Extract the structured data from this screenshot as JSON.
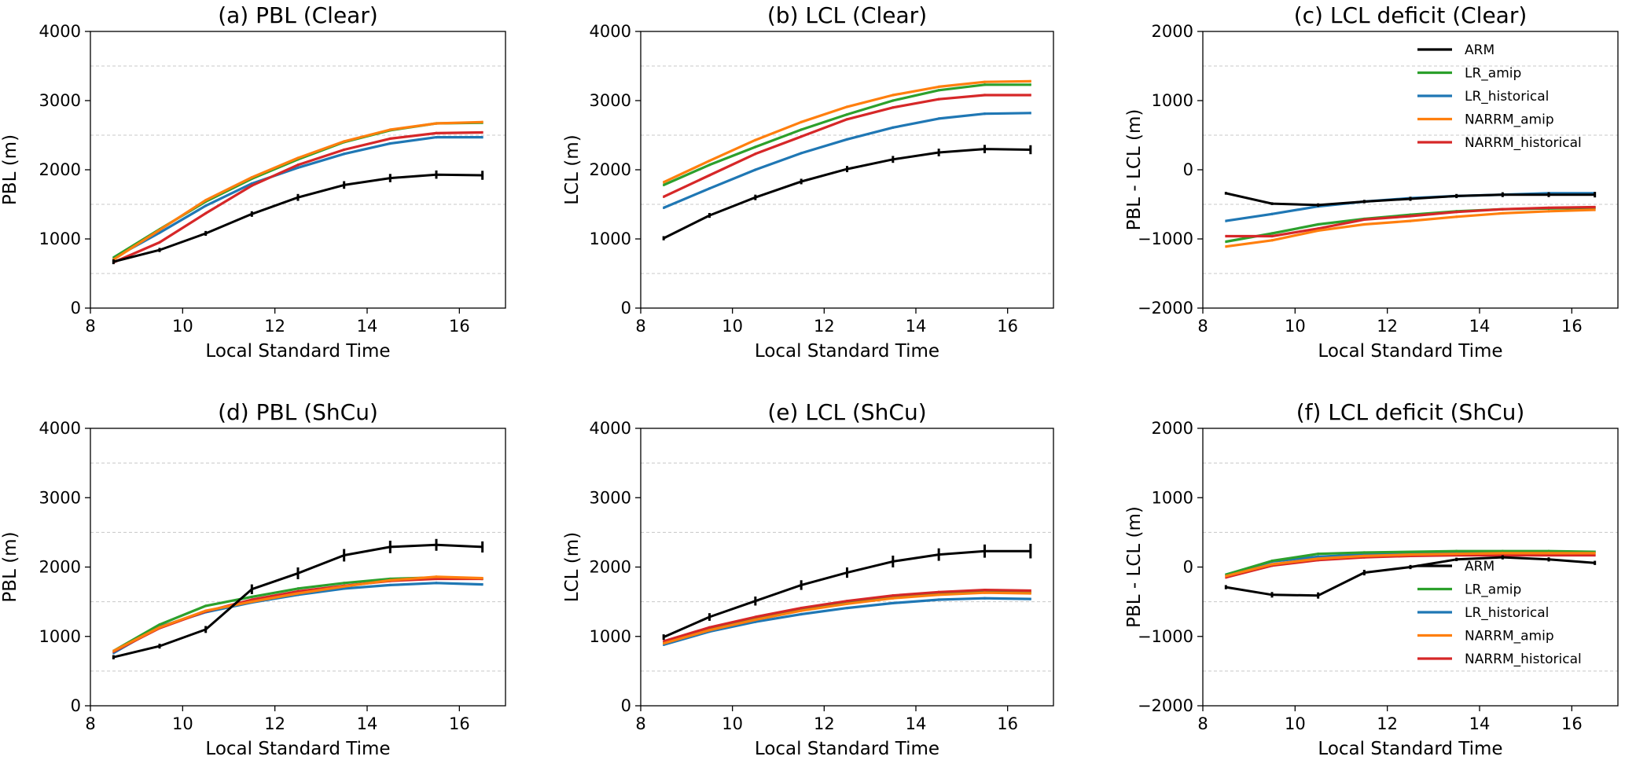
{
  "figure": {
    "series_colors": {
      "ARM": "#000000",
      "LR_amip": "#2ca02c",
      "LR_historical": "#1f77b4",
      "NARRM_amip": "#ff7f0e",
      "NARRM_historical": "#d62728"
    }
  },
  "chart_data": [
    {
      "id": "a",
      "type": "line",
      "title": "(a) PBL (Clear)",
      "xlabel": "Local Standard Time",
      "ylabel": "PBL (m)",
      "xlim": [
        8,
        17
      ],
      "ylim": [
        0,
        4000
      ],
      "xticks": [
        8,
        10,
        12,
        14,
        16
      ],
      "yticks": [
        0,
        1000,
        2000,
        3000,
        4000
      ],
      "grid": "horizontal dashed",
      "legend": null,
      "x": [
        8.5,
        9.5,
        10.5,
        11.5,
        12.5,
        13.5,
        14.5,
        15.5,
        16.5
      ],
      "series": [
        {
          "name": "LR_historical",
          "values": [
            720,
            1090,
            1480,
            1800,
            2030,
            2230,
            2380,
            2470,
            2470
          ]
        },
        {
          "name": "LR_amip",
          "values": [
            730,
            1140,
            1540,
            1870,
            2150,
            2400,
            2570,
            2670,
            2680
          ]
        },
        {
          "name": "NARRM_historical",
          "values": [
            660,
            950,
            1370,
            1770,
            2070,
            2290,
            2450,
            2530,
            2540
          ]
        },
        {
          "name": "NARRM_amip",
          "values": [
            700,
            1130,
            1560,
            1890,
            2170,
            2410,
            2580,
            2670,
            2690
          ]
        },
        {
          "name": "ARM",
          "values": [
            670,
            840,
            1080,
            1360,
            1600,
            1780,
            1880,
            1930,
            1920
          ],
          "errors": [
            35,
            30,
            35,
            40,
            50,
            55,
            60,
            60,
            65
          ]
        }
      ]
    },
    {
      "id": "b",
      "type": "line",
      "title": "(b) LCL (Clear)",
      "xlabel": "Local Standard Time",
      "ylabel": "LCL (m)",
      "xlim": [
        8,
        17
      ],
      "ylim": [
        0,
        4000
      ],
      "xticks": [
        8,
        10,
        12,
        14,
        16
      ],
      "yticks": [
        0,
        1000,
        2000,
        3000,
        4000
      ],
      "grid": "horizontal dashed",
      "legend": null,
      "x": [
        8.5,
        9.5,
        10.5,
        11.5,
        12.5,
        13.5,
        14.5,
        15.5,
        16.5
      ],
      "series": [
        {
          "name": "LR_historical",
          "values": [
            1450,
            1730,
            2000,
            2240,
            2440,
            2610,
            2740,
            2810,
            2820
          ]
        },
        {
          "name": "LR_amip",
          "values": [
            1780,
            2070,
            2330,
            2580,
            2800,
            3000,
            3150,
            3230,
            3230
          ]
        },
        {
          "name": "NARRM_historical",
          "values": [
            1610,
            1920,
            2230,
            2480,
            2730,
            2900,
            3020,
            3080,
            3080
          ]
        },
        {
          "name": "NARRM_amip",
          "values": [
            1820,
            2130,
            2430,
            2690,
            2910,
            3080,
            3200,
            3270,
            3280
          ]
        },
        {
          "name": "ARM",
          "values": [
            1010,
            1340,
            1600,
            1830,
            2010,
            2150,
            2250,
            2300,
            2290
          ],
          "errors": [
            30,
            35,
            40,
            40,
            45,
            50,
            55,
            60,
            65
          ]
        }
      ]
    },
    {
      "id": "c",
      "type": "line",
      "title": "(c) LCL deficit (Clear)",
      "xlabel": "Local Standard Time",
      "ylabel": "PBL - LCL (m)",
      "xlim": [
        8,
        17
      ],
      "ylim": [
        -2000,
        2000
      ],
      "xticks": [
        8,
        10,
        12,
        14,
        16
      ],
      "yticks": [
        -2000,
        -1000,
        0,
        1000,
        2000
      ],
      "grid": "horizontal dashed",
      "legend": "upper right",
      "legend_order": [
        "ARM",
        "LR_amip",
        "LR_historical",
        "NARRM_amip",
        "NARRM_historical"
      ],
      "x": [
        8.5,
        9.5,
        10.5,
        11.5,
        12.5,
        13.5,
        14.5,
        15.5,
        16.5
      ],
      "series": [
        {
          "name": "LR_historical",
          "values": [
            -740,
            -640,
            -530,
            -460,
            -410,
            -380,
            -360,
            -340,
            -340
          ]
        },
        {
          "name": "LR_amip",
          "values": [
            -1040,
            -920,
            -790,
            -710,
            -650,
            -600,
            -570,
            -560,
            -550
          ]
        },
        {
          "name": "NARRM_historical",
          "values": [
            -960,
            -960,
            -850,
            -720,
            -670,
            -610,
            -570,
            -550,
            -540
          ]
        },
        {
          "name": "NARRM_amip",
          "values": [
            -1110,
            -1020,
            -880,
            -790,
            -740,
            -680,
            -630,
            -600,
            -580
          ]
        },
        {
          "name": "ARM",
          "values": [
            -340,
            -490,
            -510,
            -460,
            -420,
            -380,
            -360,
            -360,
            -360
          ],
          "errors": [
            20,
            20,
            25,
            25,
            30,
            30,
            35,
            35,
            40
          ]
        }
      ]
    },
    {
      "id": "d",
      "type": "line",
      "title": "(d) PBL (ShCu)",
      "xlabel": "Local Standard Time",
      "ylabel": "PBL (m)",
      "xlim": [
        8,
        17
      ],
      "ylim": [
        0,
        4000
      ],
      "xticks": [
        8,
        10,
        12,
        14,
        16
      ],
      "yticks": [
        0,
        1000,
        2000,
        3000,
        4000
      ],
      "grid": "horizontal dashed",
      "legend": null,
      "x": [
        8.5,
        9.5,
        10.5,
        11.5,
        12.5,
        13.5,
        14.5,
        15.5,
        16.5
      ],
      "series": [
        {
          "name": "LR_historical",
          "values": [
            760,
            1140,
            1350,
            1490,
            1600,
            1690,
            1740,
            1770,
            1750
          ]
        },
        {
          "name": "LR_amip",
          "values": [
            790,
            1170,
            1440,
            1570,
            1690,
            1770,
            1830,
            1850,
            1830
          ]
        },
        {
          "name": "NARRM_historical",
          "values": [
            780,
            1120,
            1360,
            1530,
            1650,
            1730,
            1800,
            1830,
            1830
          ]
        },
        {
          "name": "NARRM_amip",
          "values": [
            790,
            1130,
            1370,
            1500,
            1620,
            1720,
            1810,
            1860,
            1840
          ]
        },
        {
          "name": "ARM",
          "values": [
            700,
            860,
            1100,
            1680,
            1910,
            2170,
            2290,
            2320,
            2290
          ],
          "errors": [
            30,
            35,
            50,
            70,
            85,
            90,
            90,
            85,
            80
          ]
        }
      ]
    },
    {
      "id": "e",
      "type": "line",
      "title": "(e) LCL (ShCu)",
      "xlabel": "Local Standard Time",
      "ylabel": "LCL (m)",
      "xlim": [
        8,
        17
      ],
      "ylim": [
        0,
        4000
      ],
      "xticks": [
        8,
        10,
        12,
        14,
        16
      ],
      "yticks": [
        0,
        1000,
        2000,
        3000,
        4000
      ],
      "grid": "horizontal dashed",
      "legend": null,
      "x": [
        8.5,
        9.5,
        10.5,
        11.5,
        12.5,
        13.5,
        14.5,
        15.5,
        16.5
      ],
      "series": [
        {
          "name": "LR_historical",
          "values": [
            880,
            1070,
            1210,
            1320,
            1410,
            1480,
            1530,
            1550,
            1540
          ]
        },
        {
          "name": "LR_amip",
          "values": [
            910,
            1110,
            1260,
            1390,
            1490,
            1570,
            1620,
            1640,
            1630
          ]
        },
        {
          "name": "NARRM_historical",
          "values": [
            930,
            1130,
            1280,
            1410,
            1510,
            1590,
            1640,
            1670,
            1660
          ]
        },
        {
          "name": "NARRM_amip",
          "values": [
            900,
            1090,
            1240,
            1370,
            1470,
            1550,
            1600,
            1630,
            1620
          ]
        },
        {
          "name": "ARM",
          "values": [
            990,
            1280,
            1510,
            1740,
            1920,
            2080,
            2180,
            2230,
            2230
          ],
          "errors": [
            40,
            55,
            65,
            70,
            75,
            85,
            90,
            95,
            105
          ]
        }
      ]
    },
    {
      "id": "f",
      "type": "line",
      "title": "(f) LCL deficit (ShCu)",
      "xlabel": "Local Standard Time",
      "ylabel": "PBL - LCL (m)",
      "xlim": [
        8,
        17
      ],
      "ylim": [
        -2000,
        2000
      ],
      "xticks": [
        8,
        10,
        12,
        14,
        16
      ],
      "yticks": [
        -2000,
        -1000,
        0,
        1000,
        2000
      ],
      "grid": "horizontal dashed",
      "legend": "lower right",
      "legend_order": [
        "ARM",
        "LR_amip",
        "LR_historical",
        "NARRM_amip",
        "NARRM_historical"
      ],
      "x": [
        8.5,
        9.5,
        10.5,
        11.5,
        12.5,
        13.5,
        14.5,
        15.5,
        16.5
      ],
      "series": [
        {
          "name": "LR_historical",
          "values": [
            -110,
            80,
            150,
            180,
            200,
            210,
            220,
            220,
            220
          ]
        },
        {
          "name": "LR_amip",
          "values": [
            -110,
            90,
            190,
            210,
            220,
            230,
            230,
            230,
            220
          ]
        },
        {
          "name": "NARRM_historical",
          "values": [
            -150,
            20,
            100,
            140,
            160,
            170,
            170,
            170,
            170
          ]
        },
        {
          "name": "NARRM_amip",
          "values": [
            -130,
            40,
            120,
            160,
            180,
            190,
            200,
            200,
            200
          ]
        },
        {
          "name": "ARM",
          "values": [
            -290,
            -400,
            -410,
            -80,
            0,
            110,
            140,
            110,
            60
          ],
          "errors": [
            30,
            40,
            45,
            40,
            30,
            25,
            30,
            30,
            30
          ]
        }
      ]
    }
  ]
}
